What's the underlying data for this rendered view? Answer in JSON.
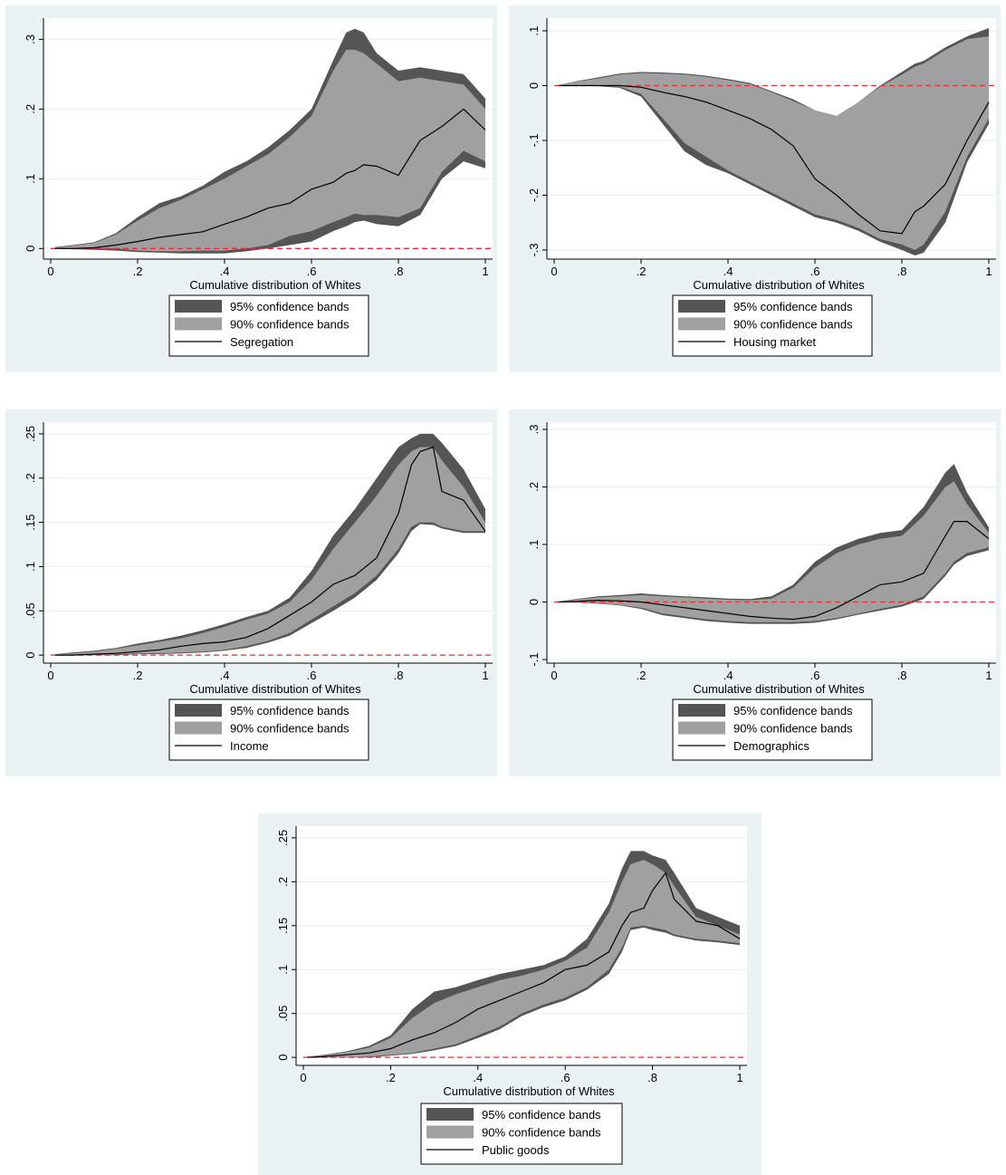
{
  "colors": {
    "panel_background": "#eaf2f3",
    "plot_background": "#ffffff",
    "band95": "#555555",
    "band90": "#a0a0a0",
    "line": "#000000",
    "zero_line": "#e0303a",
    "grid": "#e6eeee"
  },
  "chart_data": [
    {
      "type": "area",
      "xlabel": "Cumulative distribution of Whites",
      "ylabel": "",
      "xlim": [
        0,
        1
      ],
      "ylim": [
        -0.01,
        0.32
      ],
      "xticks": [
        0,
        0.2,
        0.4,
        0.6,
        0.8,
        1
      ],
      "xtick_labels": [
        "0",
        ".2",
        ".4",
        ".6",
        ".8",
        "1"
      ],
      "yticks": [
        0,
        0.1,
        0.2,
        0.3
      ],
      "ytick_labels": [
        "0",
        ".1",
        ".2",
        ".3"
      ],
      "grid": true,
      "zero_line": true,
      "x": [
        0.01,
        0.05,
        0.1,
        0.15,
        0.2,
        0.25,
        0.3,
        0.35,
        0.4,
        0.45,
        0.5,
        0.55,
        0.6,
        0.65,
        0.68,
        0.7,
        0.72,
        0.75,
        0.8,
        0.85,
        0.9,
        0.95,
        1.0
      ],
      "upper95": [
        0.002,
        0.005,
        0.009,
        0.022,
        0.045,
        0.065,
        0.075,
        0.09,
        0.11,
        0.125,
        0.145,
        0.17,
        0.2,
        0.27,
        0.31,
        0.315,
        0.31,
        0.28,
        0.255,
        0.26,
        0.255,
        0.25,
        0.215
      ],
      "upper90": [
        0.001,
        0.004,
        0.008,
        0.02,
        0.04,
        0.058,
        0.07,
        0.085,
        0.1,
        0.118,
        0.135,
        0.16,
        0.19,
        0.255,
        0.285,
        0.285,
        0.28,
        0.265,
        0.24,
        0.245,
        0.24,
        0.235,
        0.2
      ],
      "lower90": [
        0.0,
        0.0,
        0.0,
        0.0,
        -0.003,
        -0.004,
        -0.004,
        -0.003,
        -0.003,
        0.0,
        0.005,
        0.018,
        0.025,
        0.038,
        0.045,
        0.05,
        0.048,
        0.048,
        0.045,
        0.058,
        0.11,
        0.14,
        0.125
      ],
      "lower95": [
        0.0,
        -0.001,
        -0.002,
        -0.003,
        -0.005,
        -0.006,
        -0.007,
        -0.007,
        -0.007,
        -0.004,
        0.0,
        0.005,
        0.01,
        0.025,
        0.032,
        0.038,
        0.04,
        0.035,
        0.032,
        0.048,
        0.1,
        0.125,
        0.115
      ],
      "series": [
        {
          "name": "Segregation",
          "values": [
            0.0,
            0.0,
            0.001,
            0.005,
            0.01,
            0.016,
            0.02,
            0.024,
            0.035,
            0.045,
            0.058,
            0.065,
            0.085,
            0.095,
            0.108,
            0.112,
            0.12,
            0.118,
            0.105,
            0.155,
            0.175,
            0.2,
            0.17
          ]
        }
      ],
      "legend": [
        "95% confidence bands",
        "90% confidence bands",
        "Segregation"
      ],
      "legend_position": "bottom"
    },
    {
      "type": "area",
      "xlabel": "Cumulative distribution of Whites",
      "ylabel": "",
      "xlim": [
        0,
        1
      ],
      "ylim": [
        -0.31,
        0.11
      ],
      "xticks": [
        0,
        0.2,
        0.4,
        0.6,
        0.8,
        1
      ],
      "xtick_labels": [
        "0",
        ".2",
        ".4",
        ".6",
        ".8",
        "1"
      ],
      "yticks": [
        -0.3,
        -0.2,
        -0.1,
        0,
        0.1
      ],
      "ytick_labels": [
        "-.3",
        "-.2",
        "-.1",
        "0",
        ".1"
      ],
      "grid": true,
      "zero_line": true,
      "x": [
        0.01,
        0.05,
        0.1,
        0.15,
        0.2,
        0.25,
        0.3,
        0.35,
        0.4,
        0.45,
        0.5,
        0.55,
        0.6,
        0.65,
        0.7,
        0.75,
        0.8,
        0.83,
        0.85,
        0.9,
        0.95,
        1.0
      ],
      "upper95": [
        0.001,
        0.008,
        0.015,
        0.022,
        0.025,
        0.024,
        0.022,
        0.018,
        0.012,
        0.005,
        -0.01,
        -0.025,
        -0.045,
        -0.06,
        -0.03,
        0.0,
        0.025,
        0.04,
        0.045,
        0.07,
        0.09,
        0.105
      ],
      "upper90": [
        0.001,
        0.007,
        0.013,
        0.02,
        0.023,
        0.022,
        0.02,
        0.016,
        0.01,
        0.003,
        -0.012,
        -0.028,
        -0.045,
        -0.055,
        -0.03,
        -0.002,
        0.02,
        0.035,
        0.04,
        0.065,
        0.085,
        0.09
      ],
      "lower90": [
        0.0,
        0.0,
        0.0,
        -0.002,
        -0.015,
        -0.06,
        -0.105,
        -0.13,
        -0.155,
        -0.175,
        -0.195,
        -0.215,
        -0.235,
        -0.245,
        -0.26,
        -0.28,
        -0.29,
        -0.3,
        -0.29,
        -0.23,
        -0.13,
        -0.06
      ],
      "lower95": [
        0.0,
        0.0,
        -0.001,
        -0.004,
        -0.02,
        -0.07,
        -0.12,
        -0.145,
        -0.16,
        -0.18,
        -0.2,
        -0.22,
        -0.24,
        -0.25,
        -0.265,
        -0.285,
        -0.3,
        -0.31,
        -0.305,
        -0.25,
        -0.14,
        -0.07
      ],
      "series": [
        {
          "name": "Housing market",
          "values": [
            0.0,
            0.0,
            0.0,
            0.0,
            -0.003,
            -0.012,
            -0.02,
            -0.03,
            -0.045,
            -0.06,
            -0.08,
            -0.11,
            -0.17,
            -0.2,
            -0.235,
            -0.265,
            -0.27,
            -0.23,
            -0.22,
            -0.18,
            -0.1,
            -0.03
          ]
        }
      ],
      "legend": [
        "95% confidence bands",
        "90% confidence bands",
        "Housing market"
      ],
      "legend_position": "bottom"
    },
    {
      "type": "area",
      "xlabel": "Cumulative distribution of Whites",
      "ylabel": "",
      "xlim": [
        0,
        1
      ],
      "ylim": [
        -0.005,
        0.255
      ],
      "xticks": [
        0,
        0.2,
        0.4,
        0.6,
        0.8,
        1
      ],
      "xtick_labels": [
        "0",
        ".2",
        ".4",
        ".6",
        ".8",
        "1"
      ],
      "yticks": [
        0,
        0.05,
        0.1,
        0.15,
        0.2,
        0.25
      ],
      "ytick_labels": [
        "0",
        ".05",
        ".1",
        ".15",
        ".2",
        ".25"
      ],
      "grid": true,
      "zero_line": true,
      "x": [
        0.01,
        0.05,
        0.1,
        0.15,
        0.2,
        0.25,
        0.3,
        0.35,
        0.4,
        0.45,
        0.5,
        0.55,
        0.6,
        0.65,
        0.7,
        0.75,
        0.8,
        0.83,
        0.85,
        0.88,
        0.9,
        0.95,
        1.0
      ],
      "upper95": [
        0.001,
        0.003,
        0.005,
        0.008,
        0.013,
        0.017,
        0.022,
        0.028,
        0.035,
        0.043,
        0.05,
        0.065,
        0.095,
        0.135,
        0.165,
        0.2,
        0.235,
        0.245,
        0.25,
        0.25,
        0.24,
        0.21,
        0.165
      ],
      "upper90": [
        0.001,
        0.002,
        0.004,
        0.007,
        0.011,
        0.015,
        0.019,
        0.025,
        0.032,
        0.04,
        0.047,
        0.06,
        0.085,
        0.12,
        0.15,
        0.18,
        0.215,
        0.23,
        0.235,
        0.235,
        0.22,
        0.19,
        0.15
      ],
      "lower90": [
        0.0,
        0.0,
        0.0,
        0.001,
        0.002,
        0.002,
        0.003,
        0.004,
        0.006,
        0.01,
        0.016,
        0.025,
        0.04,
        0.055,
        0.07,
        0.09,
        0.12,
        0.145,
        0.15,
        0.15,
        0.145,
        0.14,
        0.14
      ],
      "lower95": [
        0.0,
        0.0,
        0.0,
        0.0,
        0.001,
        0.001,
        0.002,
        0.003,
        0.005,
        0.008,
        0.014,
        0.022,
        0.036,
        0.05,
        0.065,
        0.085,
        0.115,
        0.14,
        0.148,
        0.147,
        0.143,
        0.138,
        0.138
      ],
      "series": [
        {
          "name": "Income",
          "values": [
            0.0,
            0.0,
            0.001,
            0.002,
            0.004,
            0.006,
            0.01,
            0.013,
            0.015,
            0.02,
            0.03,
            0.045,
            0.06,
            0.08,
            0.09,
            0.11,
            0.16,
            0.215,
            0.23,
            0.235,
            0.185,
            0.175,
            0.14
          ]
        }
      ],
      "legend": [
        "95% confidence bands",
        "90% confidence bands",
        "Income"
      ],
      "legend_position": "bottom"
    },
    {
      "type": "area",
      "xlabel": "Cumulative distribution of Whites",
      "ylabel": "",
      "xlim": [
        0,
        1
      ],
      "ylim": [
        -0.1,
        0.3
      ],
      "xticks": [
        0,
        0.2,
        0.4,
        0.6,
        0.8,
        1
      ],
      "xtick_labels": [
        "0",
        ".2",
        ".4",
        ".6",
        ".8",
        "1"
      ],
      "yticks": [
        -0.1,
        0,
        0.1,
        0.2,
        0.3
      ],
      "ytick_labels": [
        "-.1",
        "0",
        ".1",
        ".2",
        ".3"
      ],
      "grid": true,
      "zero_line": true,
      "x": [
        0.01,
        0.05,
        0.1,
        0.15,
        0.2,
        0.25,
        0.3,
        0.35,
        0.4,
        0.45,
        0.5,
        0.55,
        0.6,
        0.65,
        0.7,
        0.75,
        0.8,
        0.85,
        0.9,
        0.92,
        0.95,
        1.0
      ],
      "upper95": [
        0.001,
        0.005,
        0.01,
        0.012,
        0.015,
        0.012,
        0.01,
        0.008,
        0.006,
        0.005,
        0.01,
        0.03,
        0.07,
        0.095,
        0.11,
        0.12,
        0.125,
        0.165,
        0.225,
        0.24,
        0.19,
        0.13
      ],
      "upper90": [
        0.001,
        0.004,
        0.008,
        0.01,
        0.012,
        0.01,
        0.008,
        0.006,
        0.004,
        0.003,
        0.006,
        0.025,
        0.06,
        0.085,
        0.1,
        0.11,
        0.115,
        0.15,
        0.2,
        0.21,
        0.17,
        0.12
      ],
      "lower90": [
        0.0,
        0.0,
        -0.002,
        -0.005,
        -0.01,
        -0.02,
        -0.025,
        -0.03,
        -0.033,
        -0.035,
        -0.035,
        -0.035,
        -0.033,
        -0.028,
        -0.02,
        -0.012,
        -0.005,
        0.01,
        0.05,
        0.07,
        0.085,
        0.095
      ],
      "lower95": [
        0.0,
        -0.001,
        -0.003,
        -0.006,
        -0.012,
        -0.023,
        -0.028,
        -0.033,
        -0.036,
        -0.038,
        -0.038,
        -0.038,
        -0.036,
        -0.03,
        -0.022,
        -0.015,
        -0.008,
        0.005,
        0.045,
        0.065,
        0.08,
        0.09
      ],
      "series": [
        {
          "name": "Demographics",
          "values": [
            0.0,
            0.001,
            0.003,
            0.002,
            0.0,
            -0.005,
            -0.01,
            -0.015,
            -0.02,
            -0.025,
            -0.028,
            -0.03,
            -0.025,
            -0.01,
            0.01,
            0.03,
            0.035,
            0.05,
            0.115,
            0.14,
            0.14,
            0.11
          ]
        }
      ],
      "legend": [
        "95% confidence bands",
        "90% confidence bands",
        "Demographics"
      ],
      "legend_position": "bottom"
    },
    {
      "type": "area",
      "xlabel": "Cumulative distribution of Whites",
      "ylabel": "",
      "xlim": [
        0,
        1
      ],
      "ylim": [
        -0.005,
        0.255
      ],
      "xticks": [
        0,
        0.2,
        0.4,
        0.6,
        0.8,
        1
      ],
      "xtick_labels": [
        "0",
        ".2",
        ".4",
        ".6",
        ".8",
        "1"
      ],
      "yticks": [
        0,
        0.05,
        0.1,
        0.15,
        0.2,
        0.25
      ],
      "ytick_labels": [
        "0",
        ".05",
        ".1",
        ".15",
        ".2",
        ".25"
      ],
      "grid": true,
      "zero_line": true,
      "x": [
        0.01,
        0.05,
        0.1,
        0.15,
        0.2,
        0.25,
        0.3,
        0.35,
        0.4,
        0.45,
        0.5,
        0.55,
        0.6,
        0.65,
        0.7,
        0.73,
        0.75,
        0.78,
        0.8,
        0.83,
        0.85,
        0.9,
        0.95,
        1.0
      ],
      "upper95": [
        0.001,
        0.003,
        0.007,
        0.013,
        0.025,
        0.055,
        0.075,
        0.08,
        0.088,
        0.095,
        0.1,
        0.105,
        0.115,
        0.135,
        0.175,
        0.215,
        0.235,
        0.235,
        0.23,
        0.225,
        0.21,
        0.17,
        0.16,
        0.15
      ],
      "upper90": [
        0.001,
        0.002,
        0.006,
        0.011,
        0.022,
        0.045,
        0.062,
        0.072,
        0.08,
        0.088,
        0.093,
        0.1,
        0.11,
        0.125,
        0.165,
        0.2,
        0.22,
        0.225,
        0.22,
        0.21,
        0.195,
        0.16,
        0.15,
        0.14
      ],
      "lower90": [
        0.0,
        0.0,
        0.0,
        0.001,
        0.003,
        0.005,
        0.01,
        0.015,
        0.025,
        0.035,
        0.05,
        0.06,
        0.068,
        0.08,
        0.1,
        0.125,
        0.148,
        0.15,
        0.148,
        0.145,
        0.14,
        0.135,
        0.133,
        0.13
      ],
      "lower95": [
        0.0,
        0.0,
        0.0,
        0.0,
        0.002,
        0.004,
        0.008,
        0.013,
        0.022,
        0.032,
        0.047,
        0.057,
        0.065,
        0.077,
        0.095,
        0.12,
        0.145,
        0.148,
        0.145,
        0.142,
        0.138,
        0.133,
        0.131,
        0.128
      ],
      "series": [
        {
          "name": "Public goods",
          "values": [
            0.0,
            0.001,
            0.003,
            0.005,
            0.01,
            0.02,
            0.028,
            0.04,
            0.055,
            0.065,
            0.075,
            0.085,
            0.1,
            0.105,
            0.12,
            0.15,
            0.165,
            0.17,
            0.19,
            0.21,
            0.18,
            0.155,
            0.15,
            0.135
          ]
        }
      ],
      "legend": [
        "95% confidence bands",
        "90% confidence bands",
        "Public goods"
      ],
      "legend_position": "bottom"
    }
  ]
}
